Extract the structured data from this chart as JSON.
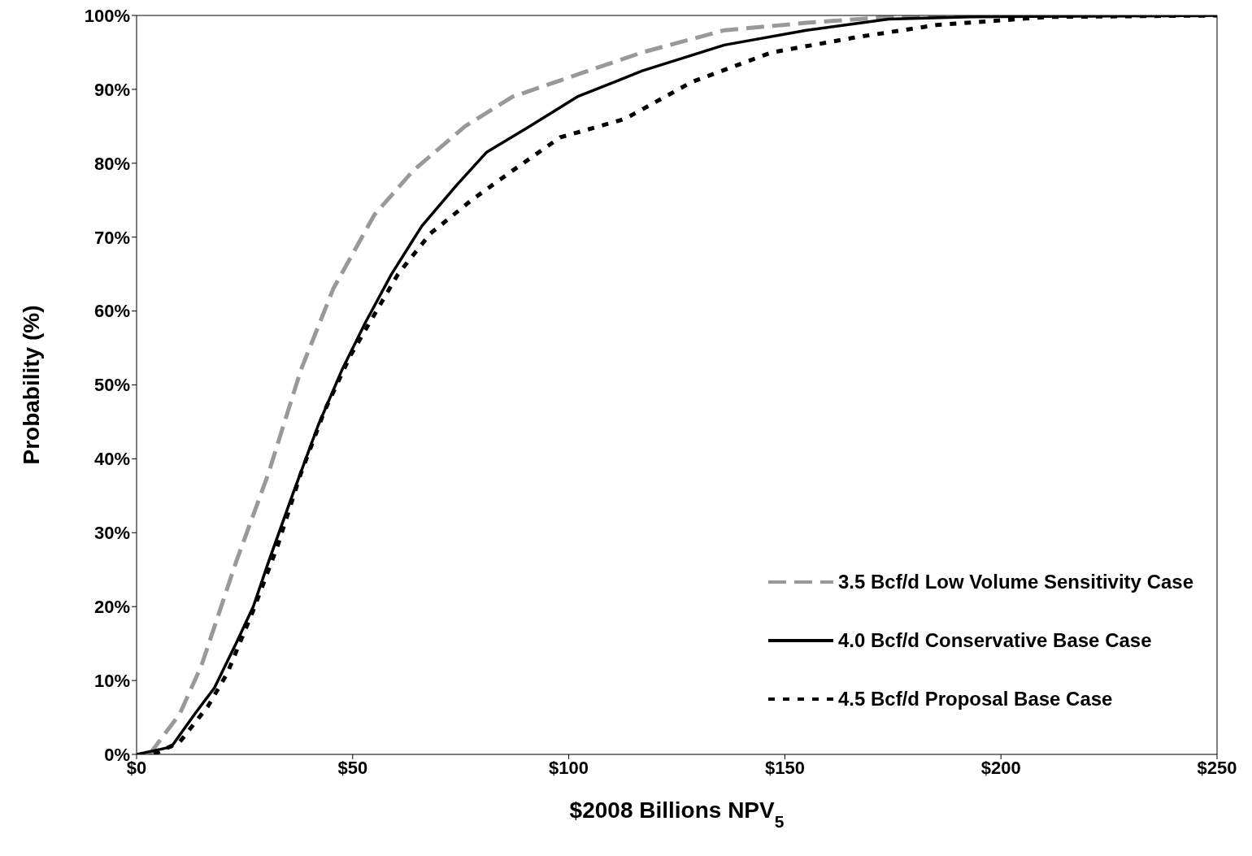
{
  "chart_data": {
    "type": "line",
    "xlabel": "$2008 Billions NPV$_{5}$",
    "ylabel": "Probability (%)",
    "xlim": [
      0,
      250
    ],
    "xticks": [
      {
        "value": 0,
        "label": "$0"
      },
      {
        "value": 50,
        "label": "$50"
      },
      {
        "value": 100,
        "label": "$100"
      },
      {
        "value": 150,
        "label": "$150"
      },
      {
        "value": 200,
        "label": "$200"
      },
      {
        "value": 250,
        "label": "$250"
      }
    ],
    "ylim": [
      0,
      100
    ],
    "yticks": [
      {
        "value": 0,
        "label": "0%"
      },
      {
        "value": 10,
        "label": "10%"
      },
      {
        "value": 20,
        "label": "20%"
      },
      {
        "value": 30,
        "label": "30%"
      },
      {
        "value": 40,
        "label": "40%"
      },
      {
        "value": 50,
        "label": "50%"
      },
      {
        "value": 60,
        "label": "60%"
      },
      {
        "value": 70,
        "label": "70%"
      },
      {
        "value": 80,
        "label": "80%"
      },
      {
        "value": 90,
        "label": "90%"
      },
      {
        "value": 100,
        "label": "100%"
      }
    ],
    "legend": "bottom right",
    "marker": "none",
    "series": [
      {
        "name": "3.5 Bcf/d Low Volume Sensitivity Case",
        "color": "#999999",
        "line_style": "dashed",
        "x": [
          3,
          10,
          15,
          23,
          30.5,
          38,
          45.5,
          55,
          64,
          76,
          87,
          102,
          117,
          136,
          155,
          174,
          200,
          250
        ],
        "values": [
          0,
          5.5,
          12,
          26,
          38,
          52,
          63,
          73,
          79,
          85,
          89,
          92,
          95,
          98,
          99,
          99.8,
          100,
          100
        ]
      },
      {
        "name": "4.0 Bcf/d Conservative Base Case",
        "color": "#000000",
        "line_style": "solid",
        "x": [
          0,
          8,
          13.5,
          18,
          23,
          27,
          30.5,
          36,
          42,
          47.5,
          53,
          59,
          66,
          74,
          81,
          91,
          102,
          117,
          136,
          155,
          174,
          193,
          250
        ],
        "values": [
          0,
          1,
          5.5,
          9,
          15,
          20,
          26,
          35,
          44.5,
          52,
          58.5,
          65,
          71.5,
          77,
          81.5,
          85,
          89,
          92.5,
          96,
          98,
          99.5,
          99.8,
          100
        ]
      },
      {
        "name": "4.5 Bcf/d Proposal Base Case",
        "color": "#000000",
        "line_style": "dotted",
        "x": [
          4,
          10,
          16.5,
          21,
          27,
          32.5,
          38,
          43.5,
          49.5,
          55,
          60.5,
          68,
          77.5,
          87,
          98,
          113,
          128.5,
          147,
          166,
          185,
          211,
          250
        ],
        "values": [
          0,
          1.7,
          6.5,
          11,
          19.5,
          28,
          38,
          46.5,
          54,
          59.5,
          65,
          70.5,
          75,
          79,
          83.5,
          86,
          91,
          95,
          97,
          98.7,
          99.8,
          100
        ]
      }
    ]
  }
}
